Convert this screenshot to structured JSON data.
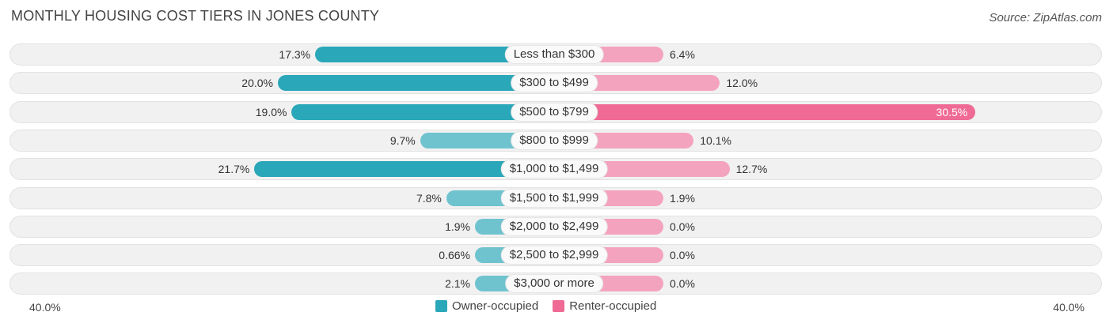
{
  "title": "MONTHLY HOUSING COST TIERS IN JONES COUNTY",
  "source": "Source: ZipAtlas.com",
  "colors": {
    "owner": "#2aa7b8",
    "owner_light": "#6fc3cf",
    "renter": "#f4a3bf",
    "renter_strong": "#ef6b95"
  },
  "chart_data": {
    "type": "bar",
    "orientation": "horizontal-diverging",
    "categories": [
      "Less than $300",
      "$300 to $499",
      "$500 to $799",
      "$800 to $999",
      "$1,000 to $1,499",
      "$1,500 to $1,999",
      "$2,000 to $2,499",
      "$2,500 to $2,999",
      "$3,000 or more"
    ],
    "series": [
      {
        "name": "Owner-occupied",
        "values": [
          17.3,
          20.0,
          19.0,
          9.7,
          21.7,
          7.8,
          1.9,
          0.66,
          2.1
        ],
        "labels": [
          "17.3%",
          "20.0%",
          "19.0%",
          "9.7%",
          "21.7%",
          "7.8%",
          "1.9%",
          "0.66%",
          "2.1%"
        ]
      },
      {
        "name": "Renter-occupied",
        "values": [
          6.4,
          12.0,
          30.5,
          10.1,
          12.7,
          1.9,
          0.0,
          0.0,
          0.0
        ],
        "labels": [
          "6.4%",
          "12.0%",
          "30.5%",
          "10.1%",
          "12.7%",
          "1.9%",
          "0.0%",
          "0.0%",
          "0.0%"
        ]
      }
    ],
    "xlim": [
      -40,
      40
    ],
    "axis_labels": {
      "left": "40.0%",
      "right": "40.0%"
    },
    "legend_position": "bottom-center"
  }
}
